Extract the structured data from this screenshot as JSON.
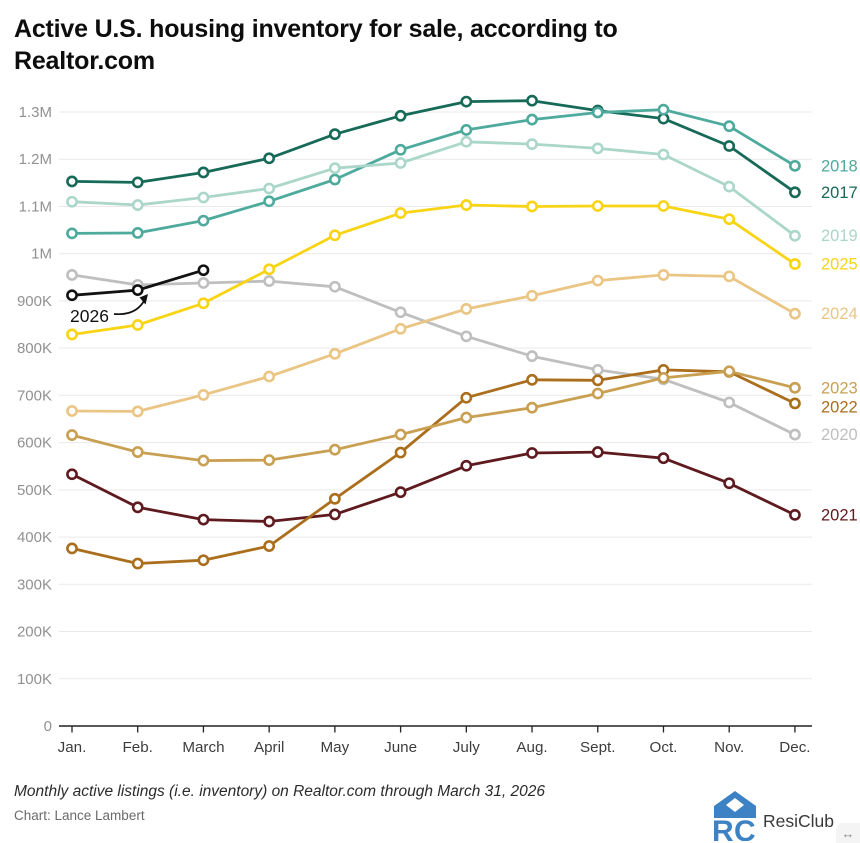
{
  "title_line1": "Active U.S. housing inventory for sale, according to",
  "title_line2": "Realtor.com",
  "chart_data": {
    "type": "line",
    "x": [
      "Jan.",
      "Feb.",
      "March",
      "April",
      "May",
      "June",
      "July",
      "Aug.",
      "Sept.",
      "Oct.",
      "Nov.",
      "Dec."
    ],
    "y_tick_labels": [
      "1.3M",
      "1.2M",
      "1.1M",
      "1M",
      "900K",
      "800K",
      "700K",
      "600K",
      "500K",
      "400K",
      "300K",
      "200K",
      "100K",
      "0"
    ],
    "ylim": [
      0,
      1300000
    ],
    "grid": true,
    "legend_position": "right-edge-colored-year-labels",
    "values_unit": "thousands of active listings",
    "series": [
      {
        "name": "2017",
        "color": "#176a58",
        "values": [
          1153,
          1151,
          1172,
          1202,
          1253,
          1292,
          1322,
          1324,
          1303,
          1286,
          1228,
          1130
        ]
      },
      {
        "name": "2018",
        "color": "#4daa9c",
        "values": [
          1043,
          1044,
          1070,
          1111,
          1157,
          1220,
          1262,
          1284,
          1299,
          1305,
          1270,
          1186
        ]
      },
      {
        "name": "2019",
        "color": "#abd6ca",
        "values": [
          1110,
          1103,
          1119,
          1138,
          1181,
          1192,
          1237,
          1232,
          1223,
          1210,
          1142,
          1038
        ]
      },
      {
        "name": "2020",
        "color": "#bfbfbf",
        "values": [
          955,
          934,
          938,
          942,
          930,
          876,
          825,
          783,
          754,
          734,
          685,
          617
        ]
      },
      {
        "name": "2021",
        "color": "#5e1a1e",
        "values": [
          533,
          463,
          437,
          433,
          448,
          495,
          551,
          578,
          580,
          567,
          514,
          447
        ]
      },
      {
        "name": "2022",
        "color": "#aa6e1d",
        "values": [
          376,
          344,
          351,
          381,
          481,
          579,
          695,
          733,
          732,
          754,
          750,
          683
        ]
      },
      {
        "name": "2023",
        "color": "#c99f52",
        "values": [
          616,
          580,
          562,
          563,
          585,
          617,
          653,
          674,
          704,
          737,
          751,
          716
        ]
      },
      {
        "name": "2024",
        "color": "#eac584",
        "values": [
          667,
          666,
          701,
          740,
          788,
          841,
          883,
          911,
          943,
          955,
          952,
          873
        ]
      },
      {
        "name": "2025",
        "color": "#f8d415",
        "values": [
          829,
          849,
          895,
          967,
          1039,
          1086,
          1103,
          1100,
          1101,
          1101,
          1073,
          978
        ]
      },
      {
        "name": "2026",
        "color": "#121212",
        "values": [
          912,
          923,
          965
        ]
      }
    ],
    "annotation": {
      "text": "2026",
      "target_series": "2026"
    }
  },
  "footer": {
    "caption": "Monthly active listings (i.e. inventory) on Realtor.com through March 31, 2026",
    "credit": "Chart: Lance Lambert"
  },
  "logo": {
    "label": "ResiClub",
    "mark": "RC",
    "color": "#3c82c4"
  },
  "icons": {
    "expand": "↔"
  }
}
